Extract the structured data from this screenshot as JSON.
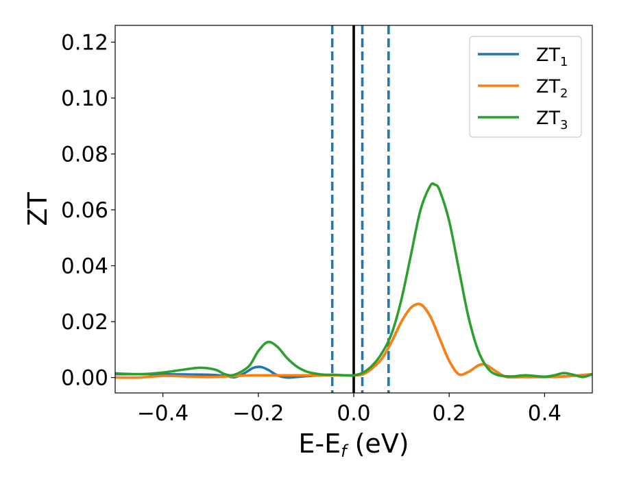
{
  "chart_data": {
    "type": "line",
    "title": "",
    "xlabel": "E-E",
    "xlabel_sub": "f",
    "xlabel_unit": " (eV)",
    "ylabel": "ZT",
    "xlim": [
      -0.5,
      0.5
    ],
    "ylim": [
      -0.0055,
      0.126
    ],
    "x_ticks": [
      -0.4,
      -0.2,
      0.0,
      0.2,
      0.4
    ],
    "x_tick_labels": [
      "−0.4",
      "−0.2",
      "0.0",
      "0.2",
      "0.4"
    ],
    "y_ticks": [
      0.0,
      0.02,
      0.04,
      0.06,
      0.08,
      0.1,
      0.12
    ],
    "y_tick_labels": [
      "0.00",
      "0.02",
      "0.04",
      "0.06",
      "0.08",
      "0.10",
      "0.12"
    ],
    "grid": false,
    "legend_position": "top-right",
    "vertical_lines": [
      {
        "x": -0.045,
        "style": "dashed",
        "color": "#1f77b4"
      },
      {
        "x": 0.0,
        "style": "solid",
        "color": "#000000"
      },
      {
        "x": 0.018,
        "style": "dashed",
        "color": "#1f77b4"
      },
      {
        "x": 0.073,
        "style": "dashed",
        "color": "#1f77b4"
      }
    ],
    "series": [
      {
        "name": "ZT",
        "name_sub": "1",
        "color": "#1f77b4",
        "x": [
          -0.5,
          -0.45,
          -0.4,
          -0.35,
          -0.3,
          -0.27,
          -0.25,
          -0.23,
          -0.21,
          -0.195,
          -0.18,
          -0.16,
          -0.14,
          -0.12,
          -0.1,
          -0.08,
          -0.06,
          -0.04,
          -0.02,
          0.0,
          0.02,
          0.04,
          0.06,
          0.08,
          0.1,
          0.12,
          0.14,
          0.16,
          0.18,
          0.2,
          0.22,
          0.24,
          0.27,
          0.3,
          0.32,
          0.35,
          0.4,
          0.45,
          0.5
        ],
        "y": [
          0.0012,
          0.0012,
          0.0012,
          0.0011,
          0.001,
          0.0006,
          0.0001,
          0.0015,
          0.0035,
          0.0038,
          0.0028,
          0.0008,
          0.0,
          0.0002,
          0.0005,
          0.0007,
          0.0008,
          0.0008,
          0.0008,
          0.0008,
          0.0012,
          0.0035,
          0.007,
          0.013,
          0.02,
          0.025,
          0.0262,
          0.022,
          0.014,
          0.006,
          0.0012,
          0.002,
          0.0048,
          0.002,
          0.0002,
          0.0002,
          0.0002,
          0.0005,
          0.0012
        ]
      },
      {
        "name": "ZT",
        "name_sub": "2",
        "color": "#ff7f0e",
        "x": [
          -0.5,
          -0.45,
          -0.4,
          -0.35,
          -0.3,
          -0.27,
          -0.25,
          -0.23,
          -0.21,
          -0.19,
          -0.17,
          -0.15,
          -0.12,
          -0.1,
          -0.08,
          -0.06,
          -0.04,
          -0.02,
          0.0,
          0.02,
          0.04,
          0.06,
          0.08,
          0.1,
          0.12,
          0.14,
          0.16,
          0.18,
          0.2,
          0.22,
          0.24,
          0.27,
          0.3,
          0.32,
          0.35,
          0.38,
          0.42,
          0.45,
          0.5
        ],
        "y": [
          0.0,
          0.0,
          0.0006,
          0.0004,
          0.0002,
          0.0004,
          0.0005,
          0.0007,
          0.0008,
          0.0008,
          0.0008,
          0.0008,
          0.0008,
          0.0008,
          0.0008,
          0.0008,
          0.0008,
          0.0008,
          0.0008,
          0.0012,
          0.0035,
          0.007,
          0.013,
          0.02,
          0.025,
          0.0262,
          0.022,
          0.014,
          0.006,
          0.0012,
          0.002,
          0.0048,
          0.002,
          0.0002,
          0.0002,
          0.0002,
          0.0002,
          0.0005,
          0.0012
        ]
      },
      {
        "name": "ZT",
        "name_sub": "3",
        "color": "#2ca02c",
        "x": [
          -0.5,
          -0.45,
          -0.4,
          -0.35,
          -0.32,
          -0.29,
          -0.27,
          -0.25,
          -0.22,
          -0.2,
          -0.18,
          -0.16,
          -0.14,
          -0.12,
          -0.1,
          -0.08,
          -0.06,
          -0.04,
          -0.02,
          0.0,
          0.02,
          0.04,
          0.06,
          0.08,
          0.1,
          0.12,
          0.14,
          0.16,
          0.17,
          0.18,
          0.2,
          0.22,
          0.24,
          0.26,
          0.28,
          0.3,
          0.33,
          0.36,
          0.4,
          0.42,
          0.44,
          0.46,
          0.48,
          0.5
        ],
        "y": [
          0.0015,
          0.0012,
          0.0018,
          0.003,
          0.0035,
          0.0028,
          0.0012,
          0.001,
          0.004,
          0.0095,
          0.0127,
          0.011,
          0.007,
          0.004,
          0.0022,
          0.0014,
          0.001,
          0.001,
          0.0008,
          0.0008,
          0.0018,
          0.0045,
          0.009,
          0.016,
          0.028,
          0.044,
          0.06,
          0.0685,
          0.069,
          0.067,
          0.056,
          0.039,
          0.022,
          0.01,
          0.0035,
          0.001,
          0.0004,
          0.0008,
          0.0003,
          0.0008,
          0.0016,
          0.001,
          0.0002,
          0.0012
        ]
      }
    ]
  }
}
